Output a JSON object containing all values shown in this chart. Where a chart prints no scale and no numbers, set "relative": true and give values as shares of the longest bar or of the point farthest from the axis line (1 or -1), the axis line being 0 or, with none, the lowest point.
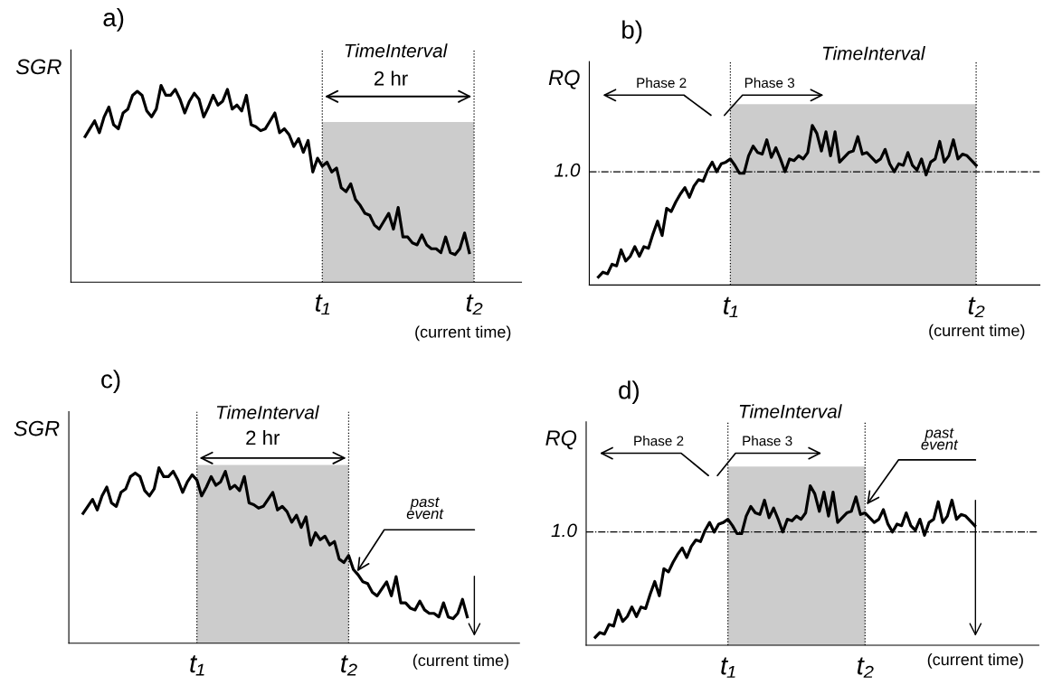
{
  "chart_data": [
    {
      "type": "line",
      "title": "a)",
      "ylabel": "SGR",
      "relative": true,
      "tick_labels": "x",
      "categories": [
        null,
        null,
        null,
        null,
        null,
        null,
        null,
        null,
        null,
        null,
        null,
        null,
        null,
        null,
        null,
        null,
        null,
        null,
        null,
        null,
        null,
        null,
        null,
        null,
        null,
        null,
        null,
        null,
        null,
        null,
        null,
        null,
        null,
        null,
        null,
        null,
        null,
        null,
        null,
        null,
        null,
        null,
        null,
        null,
        null,
        null,
        null,
        null,
        null,
        null,
        null,
        null,
        null,
        "t₁",
        null,
        null,
        null,
        null,
        null,
        null,
        null,
        null,
        null,
        null,
        null,
        null,
        null,
        null,
        null,
        null,
        null,
        null,
        null,
        null,
        null,
        null,
        null,
        null,
        null,
        null,
        null,
        null,
        null,
        null,
        null,
        "t₂",
        null,
        null,
        null,
        null,
        null,
        null,
        null,
        null,
        null,
        null
      ],
      "series": [
        {
          "color": "#000000",
          "values": [
            null,
            null,
            null,
            0.74,
            0.78,
            0.82,
            0.76,
            0.84,
            0.89,
            0.8,
            0.78,
            0.86,
            0.88,
            0.95,
            0.97,
            0.95,
            0.87,
            0.84,
            0.88,
            1.0,
            0.95,
            0.95,
            0.98,
            0.93,
            0.86,
            0.92,
            0.96,
            0.93,
            0.84,
            0.89,
            0.95,
            0.9,
            0.92,
            0.98,
            0.88,
            0.9,
            0.87,
            0.95,
            0.8,
            0.79,
            0.77,
            0.78,
            0.82,
            0.86,
            0.76,
            0.78,
            0.75,
            0.69,
            0.73,
            0.66,
            0.72,
            0.56,
            0.63,
            0.59,
            0.61,
            0.56,
            0.58,
            0.48,
            0.46,
            0.5,
            0.42,
            0.39,
            0.35,
            0.34,
            0.29,
            0.27,
            0.31,
            0.35,
            0.27,
            0.38,
            0.23,
            0.23,
            0.2,
            0.19,
            0.24,
            0.19,
            0.17,
            0.17,
            0.15,
            0.23,
            0.15,
            0.14,
            0.17,
            0.25,
            0.15,
            null,
            null,
            null,
            null,
            null,
            null,
            null,
            null,
            null,
            null,
            null
          ]
        }
      ],
      "bands": [
        {
          "axis": "x",
          "from": "t₁",
          "to": "t₂",
          "color": "#cccccc"
        }
      ],
      "ref_lines": [
        {
          "axis": "x",
          "value": "t₁",
          "line_style": "dotted"
        },
        {
          "axis": "x",
          "value": "t₂",
          "line_style": "dotted"
        }
      ],
      "annotations": [
        "TimeInterval",
        "2 hr",
        "(current time)"
      ]
    },
    {
      "type": "line",
      "title": "b)",
      "ylabel": "RQ",
      "relative": true,
      "tick_labels": "x",
      "categories": [
        null,
        null,
        null,
        null,
        null,
        null,
        null,
        null,
        null,
        null,
        null,
        null,
        null,
        null,
        null,
        null,
        null,
        null,
        null,
        null,
        null,
        null,
        null,
        null,
        null,
        null,
        null,
        null,
        null,
        null,
        null,
        "t₁",
        null,
        null,
        null,
        null,
        null,
        null,
        null,
        null,
        null,
        null,
        null,
        null,
        null,
        null,
        null,
        null,
        null,
        null,
        null,
        null,
        null,
        null,
        null,
        null,
        null,
        null,
        null,
        null,
        null,
        null,
        null,
        null,
        null,
        null,
        null,
        null,
        null,
        null,
        null,
        null,
        null,
        null,
        null,
        null,
        null,
        null,
        null,
        null,
        null,
        null,
        null,
        null,
        null,
        "t₂",
        null,
        null,
        null,
        null,
        null,
        null,
        null,
        null,
        null,
        null,
        null,
        null,
        null,
        null
      ],
      "series": [
        {
          "color": "#000000",
          "values": [
            null,
            null,
            0.05,
            0.08,
            0.07,
            0.13,
            0.12,
            0.22,
            0.15,
            0.18,
            0.24,
            0.18,
            0.24,
            0.23,
            0.32,
            0.4,
            0.31,
            0.48,
            0.46,
            0.52,
            0.57,
            0.61,
            0.55,
            0.62,
            0.66,
            0.65,
            0.72,
            0.77,
            0.71,
            0.76,
            0.77,
            0.79,
            0.75,
            0.7,
            0.7,
            0.81,
            0.87,
            0.83,
            0.82,
            0.91,
            0.8,
            0.86,
            0.79,
            0.71,
            0.79,
            0.78,
            0.81,
            0.79,
            0.83,
            1.0,
            0.95,
            0.84,
            0.96,
            0.81,
            0.96,
            0.77,
            0.8,
            0.83,
            0.84,
            0.93,
            0.82,
            0.83,
            0.8,
            0.77,
            0.79,
            0.85,
            0.76,
            0.71,
            0.76,
            0.75,
            0.83,
            0.75,
            0.72,
            0.79,
            0.69,
            0.77,
            0.79,
            0.9,
            0.77,
            0.81,
            0.91,
            0.79,
            0.82,
            0.81,
            0.78,
            0.75,
            null,
            null,
            null,
            null,
            null,
            null,
            null,
            null,
            null,
            null,
            null,
            null,
            null,
            null
          ]
        }
      ],
      "bands": [
        {
          "axis": "x",
          "from": "t₁",
          "to": "t₂",
          "color": "#cccccc"
        }
      ],
      "ref_lines": [
        {
          "axis": "x",
          "value": "t₁",
          "line_style": "dotted"
        },
        {
          "axis": "x",
          "value": "t₂",
          "line_style": "dotted"
        },
        {
          "axis": "y",
          "value": 0.71,
          "line_style": "dashed"
        }
      ],
      "annotations": [
        "TimeInterval",
        "Phase 2",
        "Phase 3",
        "(current time)",
        "1.0"
      ]
    },
    {
      "type": "line",
      "title": "c)",
      "ylabel": "SGR",
      "relative": true,
      "tick_labels": "x",
      "categories": [
        null,
        null,
        null,
        null,
        null,
        null,
        null,
        null,
        null,
        null,
        null,
        null,
        null,
        null,
        null,
        null,
        null,
        null,
        null,
        null,
        null,
        null,
        null,
        null,
        null,
        null,
        null,
        "t₁",
        null,
        null,
        null,
        null,
        null,
        null,
        null,
        null,
        null,
        null,
        null,
        null,
        null,
        null,
        null,
        null,
        null,
        null,
        null,
        null,
        null,
        null,
        null,
        null,
        null,
        null,
        null,
        null,
        null,
        null,
        null,
        "t₂",
        null,
        null,
        null,
        null,
        null,
        null,
        null,
        null,
        null,
        null,
        null,
        null,
        null,
        null,
        null,
        null,
        null,
        null,
        null,
        null,
        null,
        null,
        null,
        null,
        null,
        null,
        null,
        null,
        null,
        null,
        null,
        null,
        null,
        null,
        null,
        null
      ],
      "series": [
        {
          "color": "#000000",
          "values": [
            null,
            null,
            null,
            0.74,
            0.78,
            0.82,
            0.76,
            0.84,
            0.89,
            0.8,
            0.78,
            0.86,
            0.88,
            0.95,
            0.97,
            0.95,
            0.87,
            0.84,
            0.88,
            1.0,
            0.95,
            0.95,
            0.98,
            0.93,
            0.86,
            0.92,
            0.96,
            0.93,
            0.84,
            0.89,
            0.95,
            0.9,
            0.92,
            0.98,
            0.88,
            0.9,
            0.87,
            0.95,
            0.8,
            0.79,
            0.77,
            0.78,
            0.82,
            0.86,
            0.76,
            0.78,
            0.75,
            0.69,
            0.73,
            0.66,
            0.72,
            0.56,
            0.63,
            0.59,
            0.61,
            0.56,
            0.58,
            0.48,
            0.46,
            0.5,
            0.42,
            0.39,
            0.35,
            0.34,
            0.29,
            0.27,
            0.31,
            0.35,
            0.27,
            0.38,
            0.23,
            0.23,
            0.2,
            0.19,
            0.24,
            0.19,
            0.17,
            0.17,
            0.15,
            0.23,
            0.15,
            0.14,
            0.17,
            0.25,
            0.15,
            null,
            null,
            null,
            null,
            null,
            null,
            null,
            null,
            null,
            null,
            null
          ]
        }
      ],
      "bands": [
        {
          "axis": "x",
          "from": "t₁",
          "to": "t₂",
          "color": "#cccccc"
        }
      ],
      "ref_lines": [
        {
          "axis": "x",
          "value": "t₁",
          "line_style": "dotted"
        },
        {
          "axis": "x",
          "value": "t₂",
          "line_style": "dotted"
        }
      ],
      "annotations": [
        "TimeInterval",
        "2 hr",
        "past\nevent",
        "(current time)"
      ]
    },
    {
      "type": "line",
      "title": "d)",
      "ylabel": "RQ",
      "relative": true,
      "tick_labels": "x",
      "categories": [
        null,
        null,
        null,
        null,
        null,
        null,
        null,
        null,
        null,
        null,
        null,
        null,
        null,
        null,
        null,
        null,
        null,
        null,
        null,
        null,
        null,
        null,
        null,
        null,
        null,
        null,
        null,
        null,
        null,
        null,
        null,
        "t₁",
        null,
        null,
        null,
        null,
        null,
        null,
        null,
        null,
        null,
        null,
        null,
        null,
        null,
        null,
        null,
        null,
        null,
        null,
        null,
        null,
        null,
        null,
        null,
        null,
        null,
        null,
        null,
        null,
        null,
        "t₂",
        null,
        null,
        null,
        null,
        null,
        null,
        null,
        null,
        null,
        null,
        null,
        null,
        null,
        null,
        null,
        null,
        null,
        null,
        null,
        null,
        null,
        null,
        null,
        null,
        null,
        null,
        null,
        null,
        null,
        null,
        null,
        null,
        null,
        null,
        null,
        null,
        null,
        null
      ],
      "series": [
        {
          "color": "#000000",
          "values": [
            null,
            null,
            0.05,
            0.08,
            0.07,
            0.13,
            0.12,
            0.22,
            0.15,
            0.18,
            0.24,
            0.18,
            0.24,
            0.23,
            0.32,
            0.4,
            0.31,
            0.48,
            0.46,
            0.52,
            0.57,
            0.61,
            0.55,
            0.62,
            0.66,
            0.65,
            0.72,
            0.77,
            0.71,
            0.76,
            0.77,
            0.79,
            0.75,
            0.7,
            0.7,
            0.81,
            0.87,
            0.83,
            0.82,
            0.91,
            0.8,
            0.86,
            0.79,
            0.71,
            0.79,
            0.78,
            0.81,
            0.79,
            0.83,
            1.0,
            0.95,
            0.84,
            0.96,
            0.81,
            0.96,
            0.77,
            0.8,
            0.83,
            0.84,
            0.93,
            0.82,
            0.83,
            0.8,
            0.77,
            0.79,
            0.85,
            0.76,
            0.71,
            0.76,
            0.75,
            0.83,
            0.75,
            0.72,
            0.79,
            0.69,
            0.77,
            0.79,
            0.9,
            0.77,
            0.81,
            0.91,
            0.79,
            0.82,
            0.81,
            0.78,
            0.75,
            null,
            null,
            null,
            null,
            null,
            null,
            null,
            null,
            null,
            null,
            null,
            null,
            null,
            null
          ]
        }
      ],
      "bands": [
        {
          "axis": "x",
          "from": "t₁",
          "to": "t₂",
          "color": "#cccccc"
        }
      ],
      "ref_lines": [
        {
          "axis": "x",
          "value": "t₁",
          "line_style": "dotted"
        },
        {
          "axis": "x",
          "value": "t₂",
          "line_style": "dotted"
        },
        {
          "axis": "y",
          "value": 0.71,
          "line_style": "dashed"
        }
      ],
      "annotations": [
        "TimeInterval",
        "Phase 2",
        "Phase 3",
        "past\nevent",
        "(current time)",
        "1.0"
      ]
    }
  ]
}
